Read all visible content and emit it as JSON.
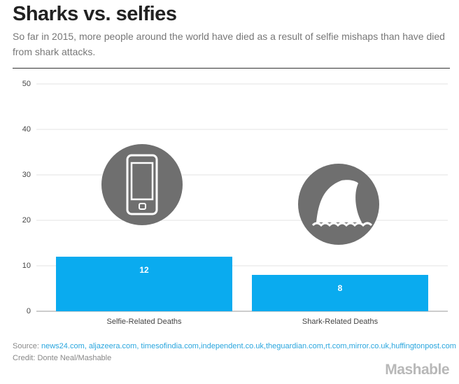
{
  "chart_data": {
    "type": "bar",
    "title": "Sharks vs. selfies",
    "subtitle": "So far in 2015, more people around the world have died as a result of selfie mishaps than have died from shark attacks.",
    "categories": [
      "Selfie-Related Deaths",
      "Shark-Related Deaths"
    ],
    "values": [
      12,
      8
    ],
    "color": "#0aabef",
    "ylim": [
      0,
      50
    ],
    "yticks": [
      0,
      10,
      20,
      30,
      40,
      50
    ],
    "grid": true,
    "source_label": "Source:",
    "sources": "news24.com, aljazeera.com, timesofindia.com,independent.co.uk,theguardian.com,rt.com,mirror.co.uk,huffingtonpost.com",
    "credit": "Credit: Donte Neal/Mashable",
    "brand": "Mashable"
  }
}
